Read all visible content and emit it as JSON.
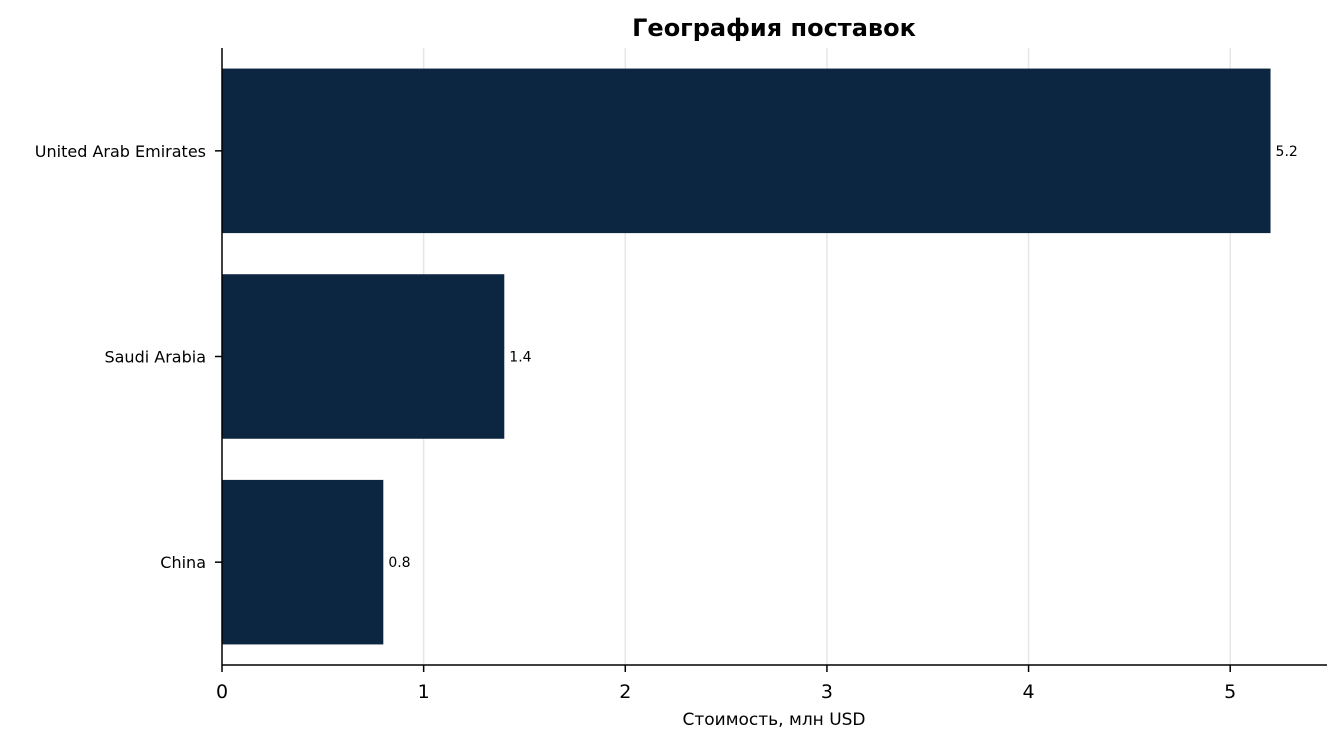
{
  "chart_data": {
    "type": "bar",
    "orientation": "horizontal",
    "title": "География поставок",
    "xlabel": "Стоимость, млн USD",
    "ylabel": "",
    "categories": [
      "United Arab Emirates",
      "Saudi Arabia",
      "China"
    ],
    "values": [
      5.2,
      1.4,
      0.8
    ],
    "value_labels": [
      "5.2",
      "1.4",
      "0.8"
    ],
    "xlim": [
      0,
      5.48
    ],
    "xticks": [
      0,
      1,
      2,
      3,
      4,
      5
    ],
    "xtick_labels": [
      "0",
      "1",
      "2",
      "3",
      "4",
      "5"
    ],
    "grid": "vertical",
    "legend": "none",
    "colors": {
      "bar": "#0c2540",
      "grid": "#e6e6e6",
      "axis": "#000000",
      "text": "#000000"
    }
  }
}
